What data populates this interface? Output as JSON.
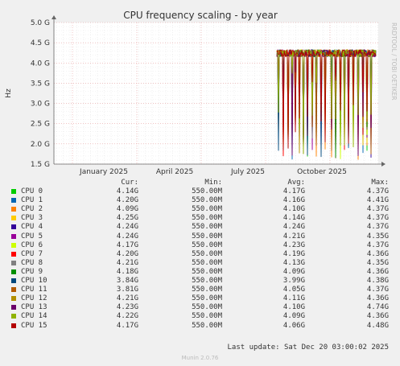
{
  "chart_data": {
    "type": "line",
    "title": "CPU frequency scaling - by year",
    "ylabel": "Hz",
    "ylim": [
      1.5,
      5.0
    ],
    "y_unit": "G",
    "y_ticks": [
      1.5,
      2.0,
      2.5,
      3.0,
      3.5,
      4.0,
      4.5,
      5.0
    ],
    "y_tick_labels": [
      "1.5 G",
      "2.0 G",
      "2.5 G",
      "3.0 G",
      "3.5 G",
      "4.0 G",
      "4.5 G",
      "5.0 G"
    ],
    "x_tick_labels": [
      "January 2025",
      "April 2025",
      "July 2025",
      "October 2025"
    ],
    "side_label": "RRDTOOL / TOBI OETIKER",
    "grid": true,
    "series": [
      {
        "name": "CPU 0",
        "color": "#00cc00",
        "cur": "4.14G",
        "min": "550.00M",
        "avg": "4.17G",
        "max": "4.37G"
      },
      {
        "name": "CPU 1",
        "color": "#0066b3",
        "cur": "4.20G",
        "min": "550.00M",
        "avg": "4.16G",
        "max": "4.41G"
      },
      {
        "name": "CPU 2",
        "color": "#ff8000",
        "cur": "4.09G",
        "min": "550.00M",
        "avg": "4.10G",
        "max": "4.37G"
      },
      {
        "name": "CPU 3",
        "color": "#ffcc00",
        "cur": "4.25G",
        "min": "550.00M",
        "avg": "4.14G",
        "max": "4.37G"
      },
      {
        "name": "CPU 4",
        "color": "#330099",
        "cur": "4.24G",
        "min": "550.00M",
        "avg": "4.24G",
        "max": "4.37G"
      },
      {
        "name": "CPU 5",
        "color": "#990099",
        "cur": "4.24G",
        "min": "550.00M",
        "avg": "4.21G",
        "max": "4.35G"
      },
      {
        "name": "CPU 6",
        "color": "#ccff00",
        "cur": "4.17G",
        "min": "550.00M",
        "avg": "4.23G",
        "max": "4.37G"
      },
      {
        "name": "CPU 7",
        "color": "#ff0000",
        "cur": "4.20G",
        "min": "550.00M",
        "avg": "4.19G",
        "max": "4.36G"
      },
      {
        "name": "CPU 8",
        "color": "#808080",
        "cur": "4.21G",
        "min": "550.00M",
        "avg": "4.13G",
        "max": "4.35G"
      },
      {
        "name": "CPU 9",
        "color": "#008f00",
        "cur": "4.18G",
        "min": "550.00M",
        "avg": "4.09G",
        "max": "4.36G"
      },
      {
        "name": "CPU 10",
        "color": "#00487d",
        "cur": "3.84G",
        "min": "550.00M",
        "avg": "3.99G",
        "max": "4.38G"
      },
      {
        "name": "CPU 11",
        "color": "#b35a00",
        "cur": "3.81G",
        "min": "550.00M",
        "avg": "4.05G",
        "max": "4.37G"
      },
      {
        "name": "CPU 12",
        "color": "#b38f00",
        "cur": "4.21G",
        "min": "550.00M",
        "avg": "4.11G",
        "max": "4.36G"
      },
      {
        "name": "CPU 13",
        "color": "#6b006b",
        "cur": "4.23G",
        "min": "550.00M",
        "avg": "4.10G",
        "max": "4.74G"
      },
      {
        "name": "CPU 14",
        "color": "#8fb300",
        "cur": "4.22G",
        "min": "550.00M",
        "avg": "4.09G",
        "max": "4.36G"
      },
      {
        "name": "CPU 15",
        "color": "#b30000",
        "cur": "4.17G",
        "min": "550.00M",
        "avg": "4.06G",
        "max": "4.48G"
      }
    ]
  },
  "legend": {
    "header": {
      "cur": "Cur:",
      "min": "Min:",
      "avg": "Avg:",
      "max": "Max:"
    }
  },
  "footer": {
    "last_update": "Last update: Sat Dec 20 03:00:02 2025",
    "generator": "Munin 2.0.76"
  }
}
